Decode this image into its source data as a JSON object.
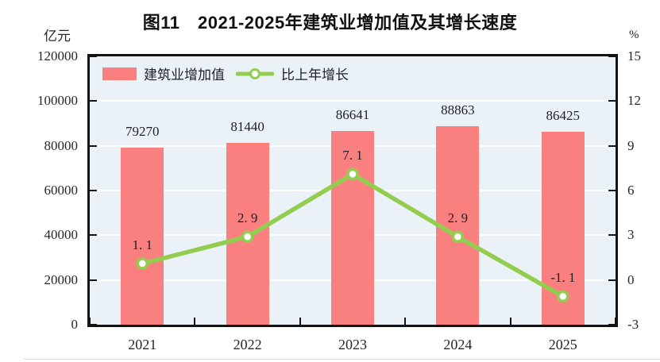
{
  "title": "图11　2021-2025年建筑业增加值及其增长速度",
  "colors": {
    "bar": "#fa8080",
    "line": "#92cd50",
    "marker_fill": "#ffffff",
    "plot_bg": "#eaf2f7",
    "frame": "#141414",
    "grid": "#ffffff",
    "text": "#26262c"
  },
  "chart_data": {
    "type": "bar+line",
    "title": "图11　2021-2025年建筑业增加值及其增长速度",
    "categories": [
      "2021",
      "2022",
      "2023",
      "2024",
      "2025"
    ],
    "series": [
      {
        "name": "建筑业增加值",
        "type": "bar",
        "axis": "left",
        "values": [
          79270,
          81440,
          86641,
          88863,
          86425
        ],
        "labels": [
          "79270",
          "81440",
          "86641",
          "88863",
          "86425"
        ]
      },
      {
        "name": "比上年增长",
        "type": "line",
        "axis": "right",
        "values": [
          1.1,
          2.9,
          7.1,
          2.9,
          -1.1
        ],
        "labels": [
          "1. 1",
          "2. 9",
          "7. 1",
          "2. 9",
          "-1. 1"
        ]
      }
    ],
    "left_axis": {
      "unit": "亿元",
      "min": 0,
      "max": 120000,
      "ticks": [
        0,
        20000,
        40000,
        60000,
        80000,
        100000,
        120000
      ]
    },
    "right_axis": {
      "unit": "%",
      "min": -3,
      "max": 15,
      "ticks": [
        -3,
        0,
        3,
        6,
        9,
        12,
        15
      ]
    },
    "grid": true,
    "legend_position": "top-left-inside"
  }
}
